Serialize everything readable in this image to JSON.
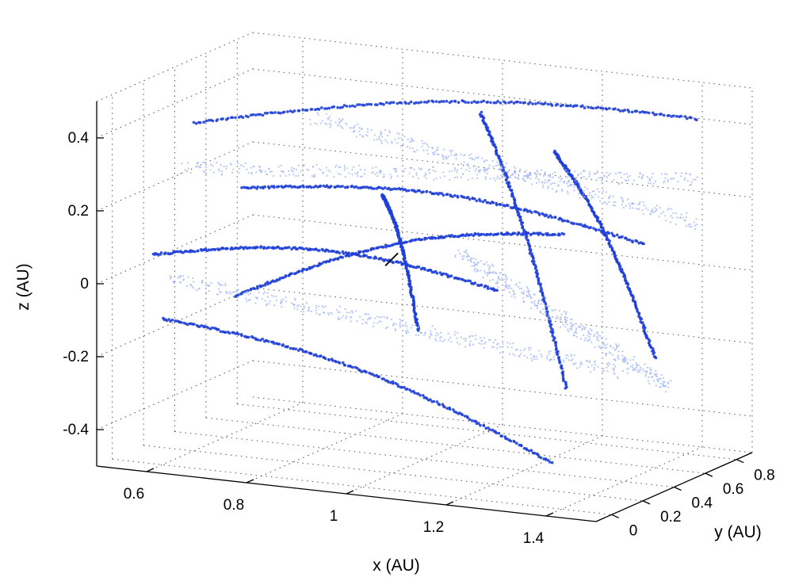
{
  "chart_data": {
    "type": "scatter",
    "projection": "3d",
    "xlabel": "x (AU)",
    "ylabel": "y (AU)",
    "zlabel": "z (AU)",
    "xlim": [
      0.5,
      1.5
    ],
    "ylim": [
      -0.1,
      0.9
    ],
    "zlim": [
      -0.5,
      0.5
    ],
    "x_ticks": [
      "0.6",
      "0.8",
      "1",
      "1.2",
      "1.4"
    ],
    "x_tick_values": [
      0.6,
      0.8,
      1.0,
      1.2,
      1.4
    ],
    "y_ticks": [
      "0",
      "0.2",
      "0.4",
      "0.6",
      "0.8"
    ],
    "y_tick_values": [
      0,
      0.2,
      0.4,
      0.6,
      0.8
    ],
    "z_ticks": [
      "-0.4",
      "-0.2",
      "0",
      "0.2",
      "0.4"
    ],
    "z_tick_values": [
      -0.4,
      -0.2,
      0,
      0.2,
      0.4
    ],
    "grid": true,
    "colors": {
      "dense": "#1f3fd6",
      "sparse": "#9fb4f4",
      "marker": "#111111"
    },
    "series": [
      {
        "style": "dense",
        "tracks": [
          {
            "from": [
              0.6,
              0.2,
              0.4
            ],
            "to": [
              1.5,
              0.8,
              0.42
            ]
          },
          {
            "from": [
              0.6,
              0.0,
              -0.1
            ],
            "to": [
              1.35,
              0.1,
              -0.4
            ]
          },
          {
            "from": [
              0.55,
              0.1,
              0.05
            ],
            "to": [
              1.1,
              0.55,
              -0.05
            ]
          },
          {
            "from": [
              0.65,
              0.35,
              0.2
            ],
            "to": [
              1.3,
              0.85,
              0.05
            ]
          },
          {
            "from": [
              0.7,
              0.15,
              -0.05
            ],
            "to": [
              1.2,
              0.65,
              0.1
            ]
          },
          {
            "from": [
              1.05,
              0.6,
              0.42
            ],
            "to": [
              1.3,
              0.35,
              -0.25
            ]
          },
          {
            "from": [
              1.15,
              0.75,
              0.3
            ],
            "to": [
              1.4,
              0.6,
              -0.2
            ]
          },
          {
            "from": [
              0.9,
              0.45,
              0.2
            ],
            "to": [
              1.05,
              0.2,
              -0.1
            ]
          }
        ]
      },
      {
        "style": "sparse",
        "tracks": [
          {
            "from": [
              0.55,
              0.3,
              0.25
            ],
            "to": [
              1.45,
              0.85,
              0.25
            ]
          },
          {
            "from": [
              0.6,
              0.05,
              0.0
            ],
            "to": [
              1.4,
              0.4,
              -0.2
            ]
          },
          {
            "from": [
              0.75,
              0.5,
              0.38
            ],
            "to": [
              1.45,
              0.9,
              0.1
            ]
          },
          {
            "from": [
              1.1,
              0.3,
              0.1
            ],
            "to": [
              1.4,
              0.7,
              -0.3
            ]
          }
        ]
      }
    ],
    "marker_point": [
      0.95,
      0.35,
      0.05
    ]
  }
}
